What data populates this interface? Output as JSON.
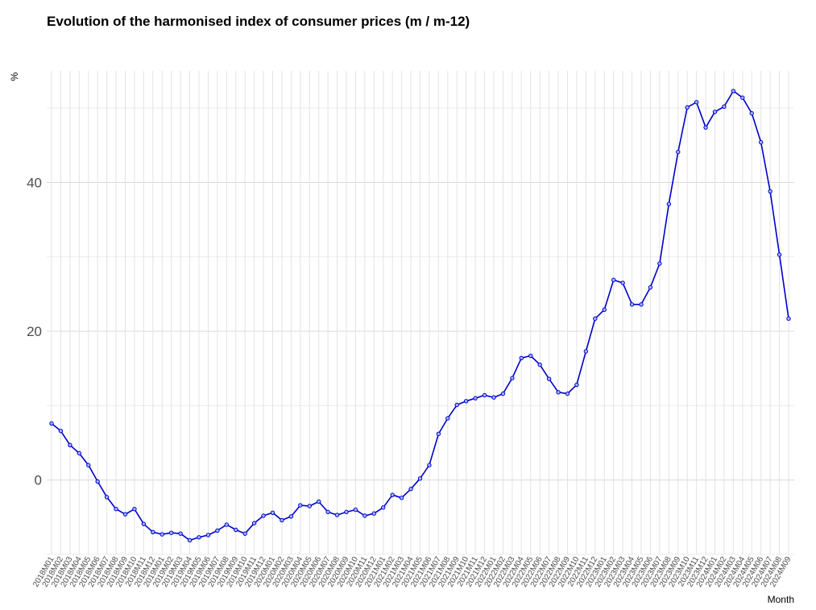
{
  "chart_data": {
    "type": "line",
    "title": "Evolution of the harmonised index of consumer prices (m / m-12)",
    "xlabel": "Month",
    "ylabel": "%",
    "ylim": [
      -10,
      55
    ],
    "yticks": [
      0,
      20,
      40
    ],
    "grid": true,
    "legend": "none",
    "line_color": "#0000cc",
    "x": [
      "2018M01",
      "2018M02",
      "2018M03",
      "2018M04",
      "2018M05",
      "2018M06",
      "2018M07",
      "2018M08",
      "2018M09",
      "2018M10",
      "2018M11",
      "2018M12",
      "2019M01",
      "2019M02",
      "2019M03",
      "2019M04",
      "2019M05",
      "2019M06",
      "2019M07",
      "2019M08",
      "2019M09",
      "2019M10",
      "2019M11",
      "2019M12",
      "2020M01",
      "2020M02",
      "2020M03",
      "2020M04",
      "2020M05",
      "2020M06",
      "2020M07",
      "2020M08",
      "2020M09",
      "2020M10",
      "2020M11",
      "2020M12",
      "2021M01",
      "2021M02",
      "2021M03",
      "2021M04",
      "2021M05",
      "2021M06",
      "2021M07",
      "2021M08",
      "2021M09",
      "2021M10",
      "2021M11",
      "2021M12",
      "2022M01",
      "2022M02",
      "2022M03",
      "2022M04",
      "2022M05",
      "2022M06",
      "2022M07",
      "2022M08",
      "2022M09",
      "2022M10",
      "2022M11",
      "2022M12",
      "2023M01",
      "2023M02",
      "2023M03",
      "2023M04",
      "2023M05",
      "2023M06",
      "2023M07",
      "2023M08",
      "2023M09",
      "2023M10",
      "2023M11",
      "2023M12",
      "2024M01",
      "2024M02",
      "2024M03",
      "2024M04",
      "2024M05",
      "2024M06",
      "2024M07",
      "2024M08",
      "2024M09"
    ],
    "values": [
      7.6,
      6.6,
      4.7,
      3.6,
      2.0,
      -0.2,
      -2.3,
      -3.9,
      -4.6,
      -3.9,
      -5.9,
      -7.0,
      -7.3,
      -7.1,
      -7.2,
      -8.1,
      -7.7,
      -7.4,
      -6.8,
      -6.0,
      -6.7,
      -7.2,
      -5.8,
      -4.8,
      -4.4,
      -5.4,
      -4.9,
      -3.4,
      -3.5,
      -2.9,
      -4.3,
      -4.7,
      -4.3,
      -4.0,
      -4.8,
      -4.5,
      -3.7,
      -2.0,
      -2.4,
      -1.2,
      0.2,
      2.0,
      6.2,
      8.3,
      10.1,
      10.6,
      11.0,
      11.4,
      11.1,
      11.6,
      13.7,
      16.4,
      16.7,
      15.5,
      13.6,
      11.8,
      11.6,
      12.8,
      17.3,
      21.7,
      22.9,
      26.9,
      26.5,
      23.6,
      23.6,
      25.9,
      29.1,
      37.1,
      44.1,
      50.1,
      50.8,
      47.4,
      49.5,
      50.2,
      52.3,
      51.4,
      49.3,
      45.4,
      38.8,
      30.3,
      21.7
    ]
  }
}
